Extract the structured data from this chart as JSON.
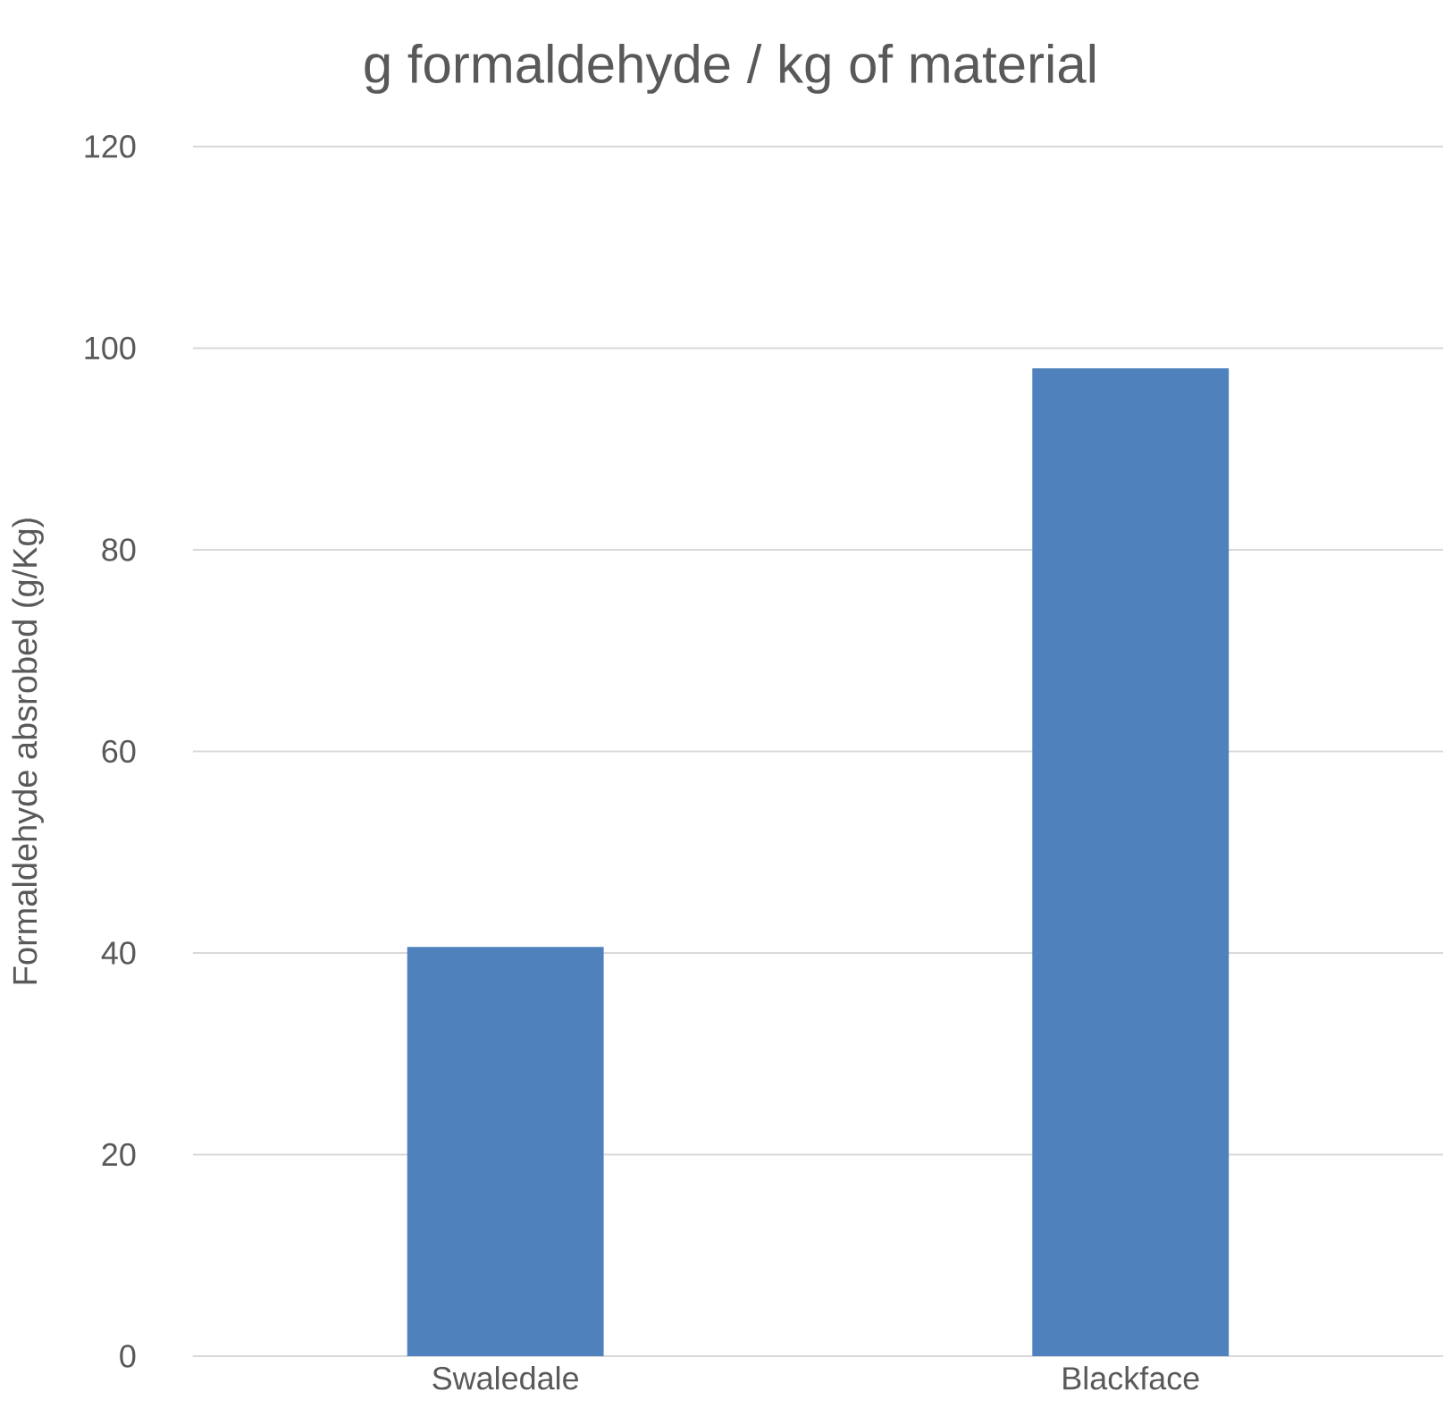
{
  "chart_data": {
    "type": "bar",
    "title": "g formaldehyde / kg of material",
    "ylabel": "Formaldehyde absrobed (g/Kg)",
    "categories": [
      "Swaledale",
      "Blackface"
    ],
    "values": [
      40.6,
      98
    ],
    "color": "#4f81bd",
    "ylim": [
      0,
      120
    ],
    "yticks": [
      0,
      20,
      40,
      60,
      80,
      100,
      120
    ],
    "grid": "y"
  }
}
